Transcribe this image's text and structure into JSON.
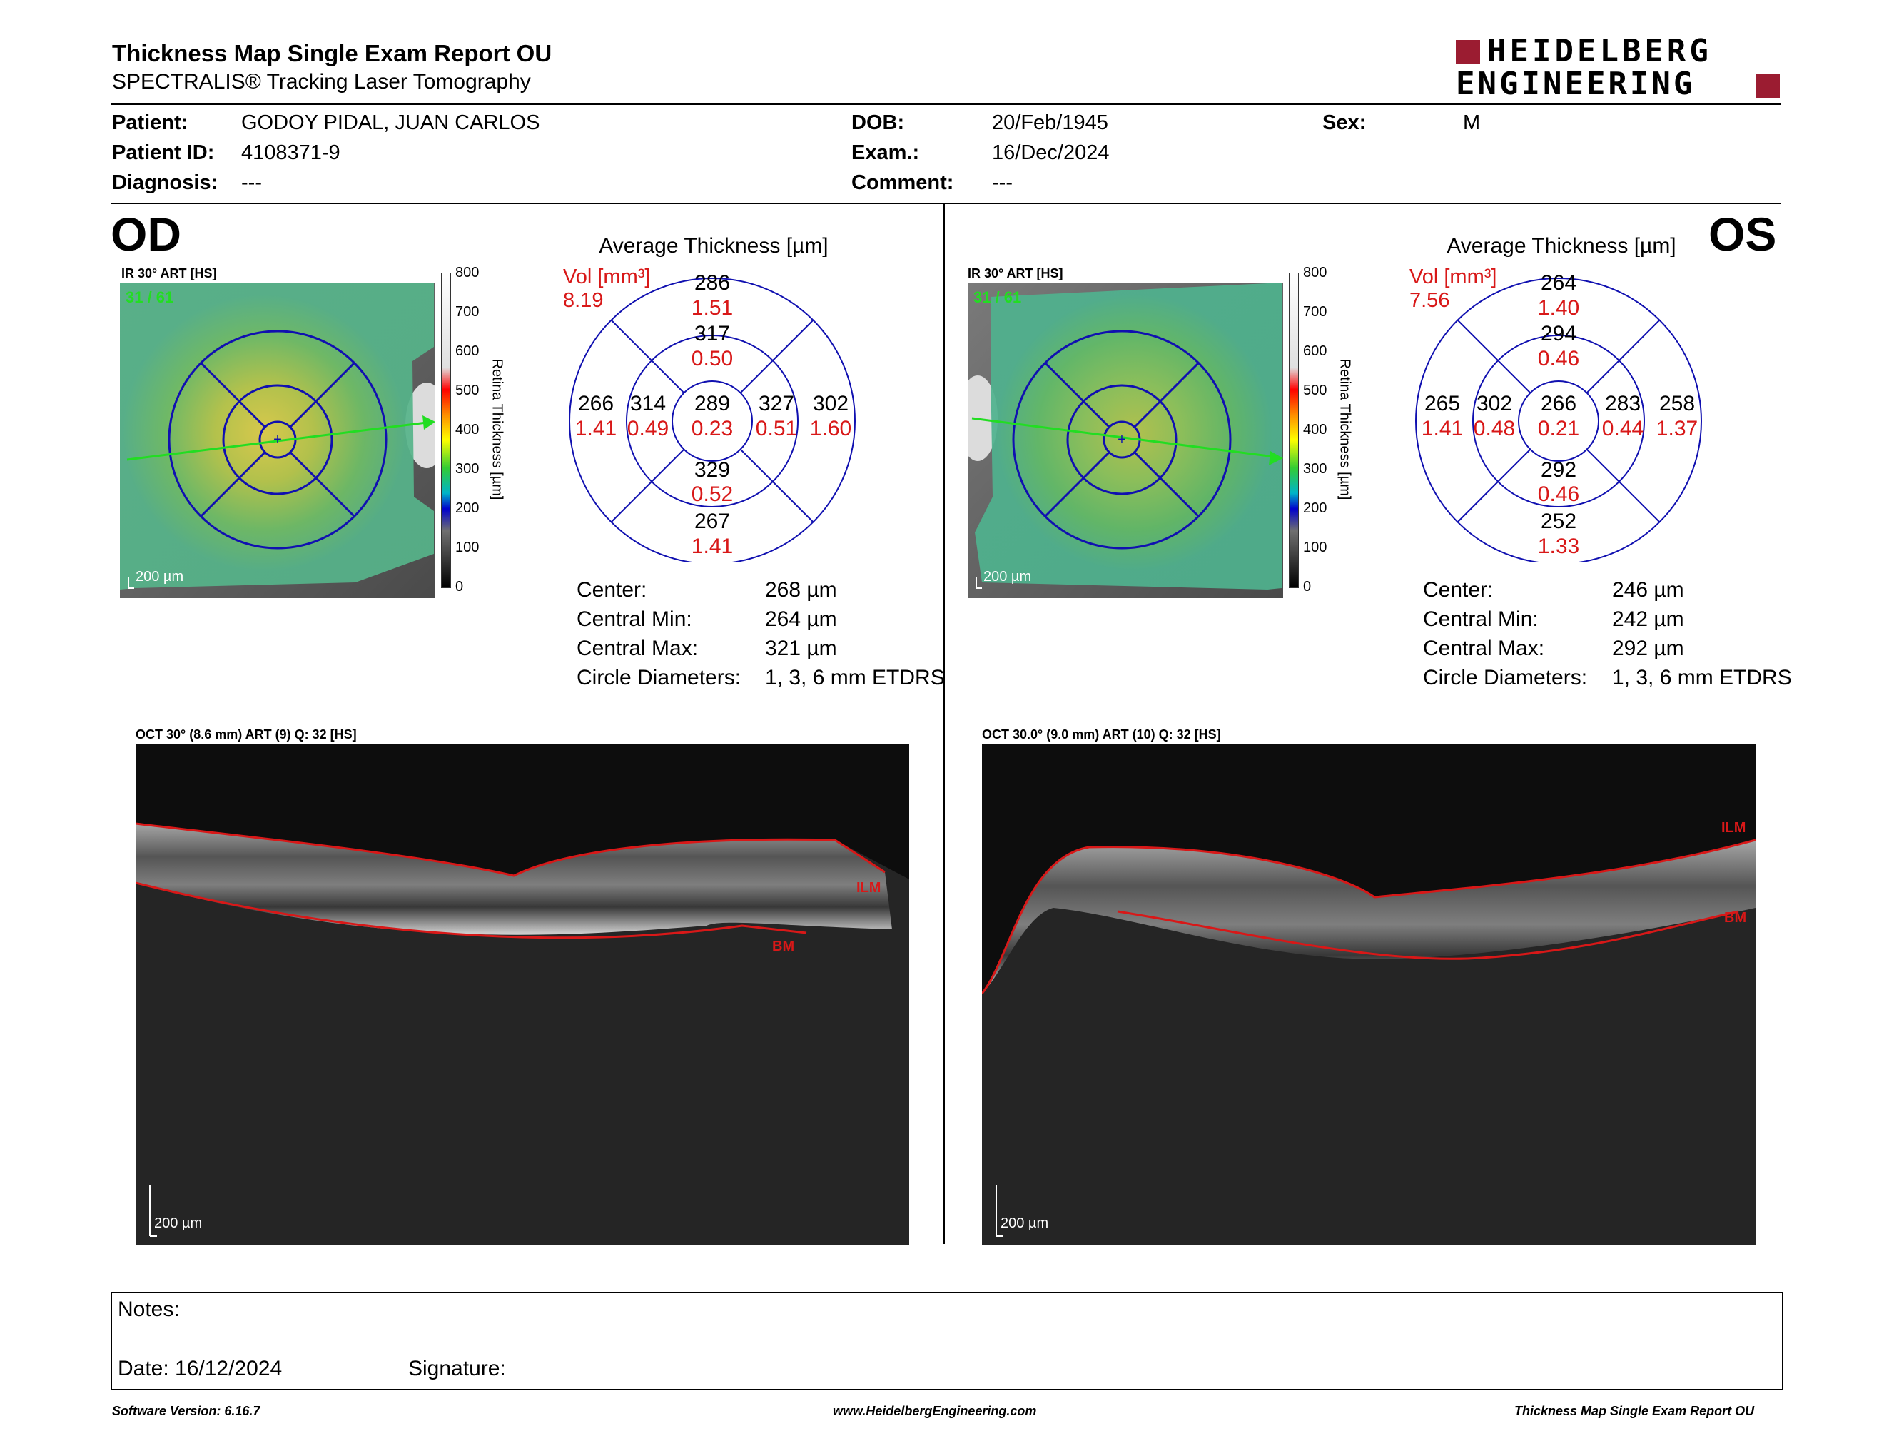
{
  "header": {
    "title": "Thickness Map Single Exam Report OU",
    "subtitle": "SPECTRALIS® Tracking Laser Tomography",
    "logo_line1": "HEIDELBERG",
    "logo_line2": "ENGINEERING",
    "brand_color": "#9b1c31"
  },
  "patient": {
    "patient_label": "Patient:",
    "patient_value": "GODOY PIDAL, JUAN CARLOS",
    "id_label": "Patient ID:",
    "id_value": "4108371-9",
    "diagnosis_label": "Diagnosis:",
    "diagnosis_value": "---",
    "dob_label": "DOB:",
    "dob_value": "20/Feb/1945",
    "exam_label": "Exam.:",
    "exam_value": "16/Dec/2024",
    "comment_label": "Comment:",
    "comment_value": "---",
    "sex_label": "Sex:",
    "sex_value": "M"
  },
  "scale": {
    "ticks": [
      "800",
      "700",
      "600",
      "500",
      "400",
      "300",
      "200",
      "100",
      "0"
    ],
    "axis_label": "Retina  Thickness [µm]"
  },
  "od": {
    "eye": "OD",
    "fundus_label": "IR 30° ART [HS]",
    "frame_counter": "31 / 61",
    "fundus_scale": "200 µm",
    "avg_title": "Average Thickness [µm]",
    "vol_label": "Vol [mm³]",
    "vol_value": "8.19",
    "sectors": {
      "center": [
        "289",
        "0.23"
      ],
      "inner_sup": [
        "317",
        "0.50"
      ],
      "inner_inf": [
        "329",
        "0.52"
      ],
      "inner_left": [
        "314",
        "0.49"
      ],
      "inner_right": [
        "327",
        "0.51"
      ],
      "outer_sup": [
        "286",
        "1.51"
      ],
      "outer_inf": [
        "267",
        "1.41"
      ],
      "outer_left": [
        "266",
        "1.41"
      ],
      "outer_right": [
        "302",
        "1.60"
      ]
    },
    "stats": [
      {
        "label": "Center:",
        "value": "268 µm"
      },
      {
        "label": "Central Min:",
        "value": "264 µm"
      },
      {
        "label": "Central Max:",
        "value": "321 µm"
      },
      {
        "label": "Circle Diameters:",
        "value": "1, 3, 6 mm ETDRS"
      }
    ],
    "oct_label": "OCT 30° (8.6 mm) ART (9) Q: 32 [HS]",
    "oct_scale": "200 µm",
    "ilm": "ILM",
    "bm": "BM"
  },
  "os": {
    "eye": "OS",
    "fundus_label": "IR 30° ART [HS]",
    "frame_counter": "31 / 61",
    "fundus_scale": "200 µm",
    "avg_title": "Average Thickness [µm]",
    "vol_label": "Vol [mm³]",
    "vol_value": "7.56",
    "sectors": {
      "center": [
        "266",
        "0.21"
      ],
      "inner_sup": [
        "294",
        "0.46"
      ],
      "inner_inf": [
        "292",
        "0.46"
      ],
      "inner_left": [
        "302",
        "0.48"
      ],
      "inner_right": [
        "283",
        "0.44"
      ],
      "outer_sup": [
        "264",
        "1.40"
      ],
      "outer_inf": [
        "252",
        "1.33"
      ],
      "outer_left": [
        "265",
        "1.41"
      ],
      "outer_right": [
        "258",
        "1.37"
      ]
    },
    "stats": [
      {
        "label": "Center:",
        "value": "246 µm"
      },
      {
        "label": "Central Min:",
        "value": "242 µm"
      },
      {
        "label": "Central Max:",
        "value": "292 µm"
      },
      {
        "label": "Circle Diameters:",
        "value": "1, 3, 6 mm ETDRS"
      }
    ],
    "oct_label": "OCT 30.0° (9.0 mm) ART (10) Q: 32 [HS]",
    "oct_scale": "200 µm",
    "ilm": "ILM",
    "bm": "BM"
  },
  "notes": {
    "notes_label": "Notes:",
    "date_label": "Date: 16/12/2024",
    "signature_label": "Signature:"
  },
  "footer": {
    "left": "Software Version: 6.16.7",
    "center": "www.HeidelbergEngineering.com",
    "right": "Thickness Map Single Exam Report OU"
  }
}
